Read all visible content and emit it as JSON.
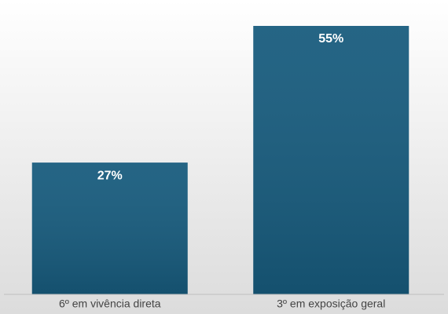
{
  "chart_data": {
    "type": "bar",
    "categories": [
      "6º em vivência direta",
      "3º em exposição geral"
    ],
    "values": [
      27,
      55
    ],
    "value_labels": [
      "27%",
      "55%"
    ],
    "color": "#175b7d"
  }
}
